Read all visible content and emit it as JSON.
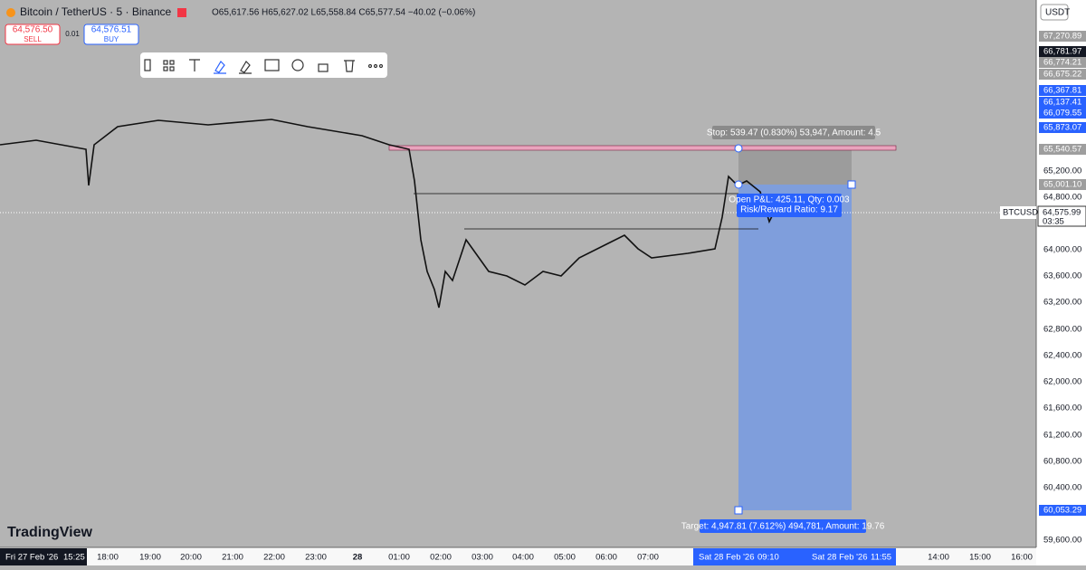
{
  "header": {
    "symbol": "Bitcoin / TetherUS · 5 · Binance",
    "ohlc": "O65,617.56 H65,627.02 L65,558.84 C65,577.54 −40.02 (−0.06%)"
  },
  "trade": {
    "sell_price": "64,576.50",
    "sell": "SELL",
    "spread": "0.01",
    "buy_price": "64,576.51",
    "buy": "BUY"
  },
  "currency": "USDT",
  "price_axis": {
    "ticks": [
      "65,200.00",
      "64,800.00",
      "64,000.00",
      "63,600.00",
      "63,200.00",
      "62,800.00",
      "62,400.00",
      "62,000.00",
      "61,600.00",
      "61,200.00",
      "60,800.00",
      "60,400.00",
      "59,600.00"
    ],
    "markers": [
      "67,270.89",
      "66,781.97",
      "66,774.21",
      "66,675.22",
      "66,367.81",
      "66,137.41",
      "66,079.55",
      "65,873.07",
      "65,540.57",
      "65,001.10",
      "60,053.29"
    ],
    "last_price": "64,575.99",
    "countdown": "03:35",
    "symbol_tag": "BTCUSDT"
  },
  "position": {
    "stop": "Stop: 539.47 (0.830%) 53,947, Amount: 4.5",
    "pnl": "Open P&L: 425.11, Qty: 0.003",
    "rr": "Risk/Reward Ratio: 9.17",
    "target": "Target: 4,947.81 (7.612%) 494,781, Amount: 19.76"
  },
  "time_axis": {
    "start": "Fri 27 Feb '26",
    "start_time": "15:25",
    "labels": [
      "18:00",
      "19:00",
      "20:00",
      "21:00",
      "22:00",
      "23:00",
      "28",
      "01:00",
      "02:00",
      "03:00",
      "04:00",
      "05:00",
      "06:00",
      "07:00",
      "14:00",
      "15:00",
      "16:00"
    ],
    "entry_date": "Sat 28 Feb '26",
    "entry_time": "09:10",
    "exit_date": "Sat 28 Feb '26",
    "exit_time": "11:55"
  },
  "logo": "TradingView"
}
